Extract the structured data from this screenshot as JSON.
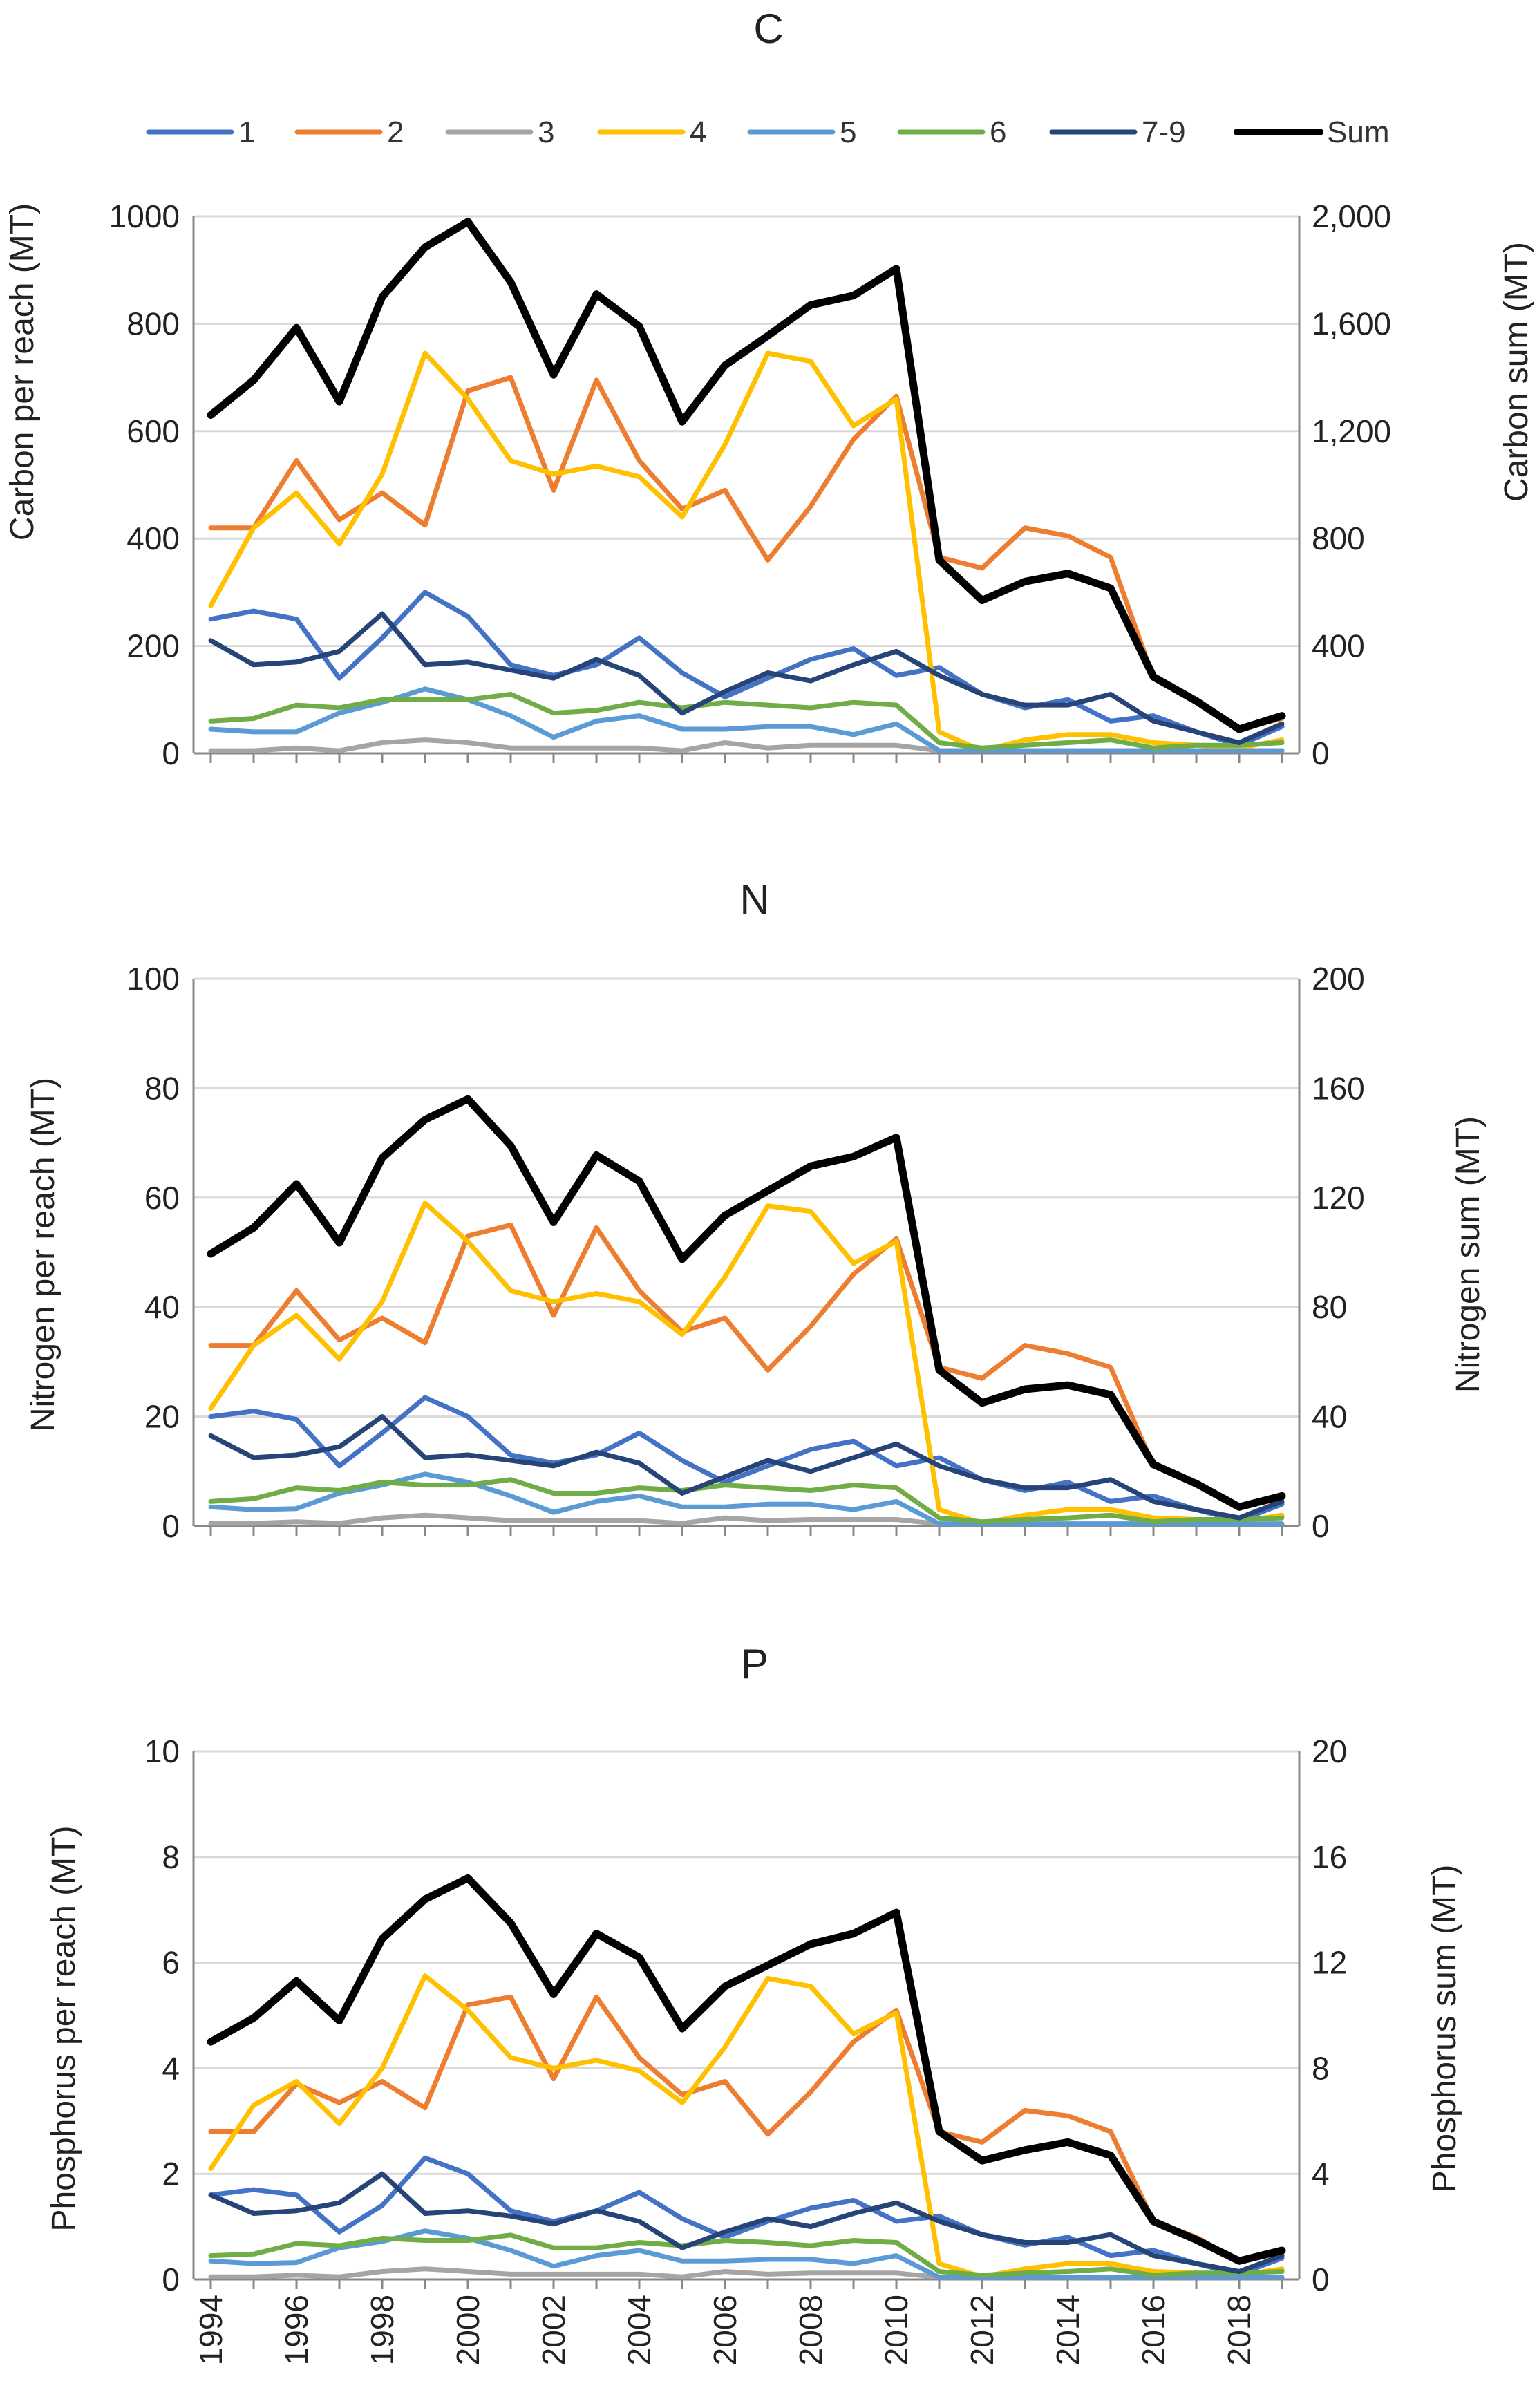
{
  "legend": [
    {
      "label": "1",
      "color": "#4472C4"
    },
    {
      "label": "2",
      "color": "#ED7D31"
    },
    {
      "label": "3",
      "color": "#A5A5A5"
    },
    {
      "label": "4",
      "color": "#FFC000"
    },
    {
      "label": "5",
      "color": "#5B9BD5"
    },
    {
      "label": "6",
      "color": "#70AD47"
    },
    {
      "label": "7-9",
      "color": "#264478"
    },
    {
      "label": "Sum",
      "color": "#000000"
    }
  ],
  "x_ticks": [
    "1994",
    "1996",
    "1998",
    "2000",
    "2002",
    "2004",
    "2006",
    "2008",
    "2010",
    "2012",
    "2014",
    "2016",
    "2018"
  ],
  "chart_data": [
    {
      "type": "line",
      "title": "C",
      "x": [
        1994,
        1995,
        1996,
        1997,
        1998,
        1999,
        2000,
        2001,
        2002,
        2003,
        2004,
        2005,
        2006,
        2007,
        2008,
        2009,
        2010,
        2011,
        2012,
        2013,
        2014,
        2015,
        2016,
        2017,
        2018,
        2019
      ],
      "ylabel": "Carbon per reach (MT)",
      "y2label": "Carbon sum (MT)",
      "ylim": [
        0,
        1000
      ],
      "y2lim": [
        0,
        2000
      ],
      "yticks": [
        "0",
        "200",
        "400",
        "600",
        "800",
        "1000"
      ],
      "y2ticks": [
        "0",
        "400",
        "800",
        "1,200",
        "1,600",
        "2,000"
      ],
      "series": [
        {
          "name": "1",
          "axis": "left",
          "values": [
            250,
            265,
            250,
            140,
            215,
            300,
            255,
            165,
            145,
            165,
            215,
            150,
            105,
            140,
            175,
            195,
            145,
            160,
            110,
            85,
            100,
            60,
            70,
            40,
            15,
            50
          ]
        },
        {
          "name": "2",
          "axis": "left",
          "values": [
            420,
            420,
            545,
            435,
            485,
            425,
            675,
            700,
            490,
            695,
            545,
            455,
            490,
            360,
            460,
            585,
            665,
            365,
            345,
            420,
            405,
            365,
            140,
            100,
            45,
            65
          ]
        },
        {
          "name": "3",
          "axis": "left",
          "values": [
            5,
            5,
            10,
            5,
            20,
            25,
            20,
            10,
            10,
            10,
            10,
            5,
            20,
            10,
            15,
            15,
            15,
            5,
            5,
            5,
            5,
            5,
            5,
            5,
            5,
            5
          ]
        },
        {
          "name": "4",
          "axis": "left",
          "values": [
            275,
            420,
            485,
            390,
            520,
            745,
            660,
            545,
            520,
            535,
            515,
            440,
            575,
            745,
            730,
            610,
            660,
            40,
            5,
            25,
            35,
            35,
            20,
            15,
            10,
            25
          ]
        },
        {
          "name": "5",
          "axis": "left",
          "values": [
            45,
            40,
            40,
            75,
            95,
            120,
            100,
            70,
            30,
            60,
            70,
            45,
            45,
            50,
            50,
            35,
            55,
            5,
            5,
            5,
            5,
            5,
            5,
            5,
            5,
            5
          ]
        },
        {
          "name": "6",
          "axis": "left",
          "values": [
            60,
            65,
            90,
            85,
            100,
            100,
            100,
            110,
            75,
            80,
            95,
            85,
            95,
            90,
            85,
            95,
            90,
            20,
            10,
            15,
            20,
            25,
            10,
            15,
            15,
            20
          ]
        },
        {
          "name": "7-9",
          "axis": "left",
          "values": [
            210,
            165,
            170,
            190,
            260,
            165,
            170,
            155,
            140,
            175,
            145,
            75,
            115,
            150,
            135,
            165,
            190,
            145,
            110,
            90,
            90,
            110,
            60,
            40,
            20,
            55
          ]
        },
        {
          "name": "Sum",
          "axis": "right",
          "values": [
            1260,
            1390,
            1585,
            1310,
            1700,
            1885,
            1980,
            1755,
            1410,
            1710,
            1590,
            1235,
            1445,
            1555,
            1670,
            1705,
            1805,
            720,
            570,
            640,
            670,
            615,
            285,
            195,
            90,
            140
          ]
        }
      ]
    },
    {
      "type": "line",
      "title": "N",
      "x": [
        1994,
        1995,
        1996,
        1997,
        1998,
        1999,
        2000,
        2001,
        2002,
        2003,
        2004,
        2005,
        2006,
        2007,
        2008,
        2009,
        2010,
        2011,
        2012,
        2013,
        2014,
        2015,
        2016,
        2017,
        2018,
        2019
      ],
      "ylabel": "Nitrogen per reach (MT)",
      "y2label": "Nitrogen sum (MT)",
      "ylim": [
        0,
        100
      ],
      "y2lim": [
        0,
        200
      ],
      "yticks": [
        "0",
        "20",
        "40",
        "60",
        "80",
        "100"
      ],
      "y2ticks": [
        "0",
        "40",
        "80",
        "120",
        "160",
        "200"
      ],
      "series": [
        {
          "name": "1",
          "axis": "left",
          "values": [
            20,
            21,
            19.5,
            11,
            17,
            23.5,
            20,
            13,
            11.5,
            13,
            17,
            12,
            8,
            11,
            14,
            15.5,
            11,
            12.5,
            8.5,
            6.5,
            8,
            4.5,
            5.5,
            3,
            1,
            4
          ]
        },
        {
          "name": "2",
          "axis": "left",
          "values": [
            33,
            33,
            43,
            34,
            38,
            33.5,
            53,
            55,
            38.5,
            54.5,
            43,
            35.5,
            38,
            28.5,
            36.5,
            46,
            52.5,
            29,
            27,
            33,
            31.5,
            29,
            11,
            8,
            3.5,
            5
          ]
        },
        {
          "name": "3",
          "axis": "left",
          "values": [
            0.5,
            0.5,
            0.8,
            0.5,
            1.5,
            2,
            1.5,
            1,
            1,
            1,
            1,
            0.5,
            1.5,
            1,
            1.2,
            1.2,
            1.2,
            0.4,
            0.4,
            0.4,
            0.4,
            0.4,
            0.4,
            0.4,
            0.4,
            0.4
          ]
        },
        {
          "name": "4",
          "axis": "left",
          "values": [
            21.5,
            33,
            38.5,
            30.5,
            41,
            59,
            52,
            43,
            41,
            42.5,
            41,
            35,
            45.5,
            58.5,
            57.5,
            48,
            52,
            3,
            0.5,
            2,
            3,
            3,
            1.5,
            1.2,
            0.8,
            2
          ]
        },
        {
          "name": "5",
          "axis": "left",
          "values": [
            3.5,
            3,
            3.2,
            6,
            7.5,
            9.5,
            8,
            5.5,
            2.5,
            4.5,
            5.5,
            3.5,
            3.5,
            4,
            4,
            3,
            4.5,
            0.4,
            0.4,
            0.4,
            0.4,
            0.4,
            0.4,
            0.4,
            0.4,
            0.4
          ]
        },
        {
          "name": "6",
          "axis": "left",
          "values": [
            4.5,
            5,
            7,
            6.5,
            8,
            7.5,
            7.5,
            8.5,
            6,
            6,
            7,
            6.5,
            7.5,
            7,
            6.5,
            7.5,
            7,
            1.5,
            0.8,
            1.2,
            1.5,
            2,
            0.8,
            1.2,
            1.2,
            1.5
          ]
        },
        {
          "name": "7-9",
          "axis": "left",
          "values": [
            16.5,
            12.5,
            13,
            14.5,
            20,
            12.5,
            13,
            12,
            11,
            13.5,
            11.5,
            6,
            9,
            12,
            10,
            12.5,
            15,
            11,
            8.5,
            7,
            7,
            8.5,
            4.5,
            3,
            1.5,
            4.5
          ]
        },
        {
          "name": "Sum",
          "axis": "right",
          "values": [
            99.5,
            109,
            125,
            103.5,
            134.5,
            148.5,
            156,
            139,
            111,
            135.5,
            126,
            97.5,
            113.5,
            122.5,
            131.5,
            135,
            142,
            57,
            45,
            50,
            51.5,
            48,
            22.5,
            15.5,
            7,
            11
          ]
        }
      ]
    },
    {
      "type": "line",
      "title": "P",
      "x": [
        1994,
        1995,
        1996,
        1997,
        1998,
        1999,
        2000,
        2001,
        2002,
        2003,
        2004,
        2005,
        2006,
        2007,
        2008,
        2009,
        2010,
        2011,
        2012,
        2013,
        2014,
        2015,
        2016,
        2017,
        2018,
        2019
      ],
      "ylabel": "Phosphorus per reach (MT)",
      "y2label": "Phosphorus sum (MT)",
      "ylim": [
        0,
        10
      ],
      "y2lim": [
        0,
        20
      ],
      "yticks": [
        "0",
        "2",
        "4",
        "6",
        "8",
        "10"
      ],
      "y2ticks": [
        "0",
        "4",
        "8",
        "12",
        "16",
        "20"
      ],
      "series": [
        {
          "name": "1",
          "axis": "left",
          "values": [
            1.6,
            1.7,
            1.6,
            0.9,
            1.4,
            2.3,
            2.0,
            1.3,
            1.1,
            1.3,
            1.65,
            1.15,
            0.8,
            1.1,
            1.35,
            1.5,
            1.1,
            1.2,
            0.85,
            0.65,
            0.8,
            0.45,
            0.55,
            0.3,
            0.1,
            0.4
          ]
        },
        {
          "name": "2",
          "axis": "left",
          "values": [
            2.8,
            2.8,
            3.7,
            3.35,
            3.75,
            3.25,
            5.2,
            5.35,
            3.8,
            5.35,
            4.2,
            3.5,
            3.75,
            2.75,
            3.55,
            4.5,
            5.1,
            2.8,
            2.6,
            3.2,
            3.1,
            2.8,
            1.1,
            0.8,
            0.35,
            0.5
          ]
        },
        {
          "name": "3",
          "axis": "left",
          "values": [
            0.05,
            0.05,
            0.08,
            0.05,
            0.15,
            0.2,
            0.15,
            0.1,
            0.1,
            0.1,
            0.1,
            0.05,
            0.15,
            0.1,
            0.12,
            0.12,
            0.12,
            0.04,
            0.04,
            0.04,
            0.04,
            0.04,
            0.04,
            0.04,
            0.04,
            0.04
          ]
        },
        {
          "name": "4",
          "axis": "left",
          "values": [
            2.1,
            3.3,
            3.75,
            2.95,
            4.0,
            5.75,
            5.1,
            4.2,
            4.0,
            4.15,
            3.95,
            3.35,
            4.4,
            5.7,
            5.55,
            4.65,
            5.05,
            0.3,
            0.05,
            0.2,
            0.3,
            0.3,
            0.15,
            0.12,
            0.08,
            0.2
          ]
        },
        {
          "name": "5",
          "axis": "left",
          "values": [
            0.35,
            0.3,
            0.32,
            0.6,
            0.72,
            0.92,
            0.78,
            0.55,
            0.25,
            0.45,
            0.55,
            0.35,
            0.35,
            0.38,
            0.38,
            0.3,
            0.45,
            0.04,
            0.04,
            0.04,
            0.04,
            0.04,
            0.04,
            0.04,
            0.04,
            0.04
          ]
        },
        {
          "name": "6",
          "axis": "left",
          "values": [
            0.45,
            0.48,
            0.68,
            0.64,
            0.78,
            0.74,
            0.74,
            0.84,
            0.6,
            0.6,
            0.7,
            0.64,
            0.74,
            0.7,
            0.64,
            0.74,
            0.7,
            0.15,
            0.08,
            0.12,
            0.15,
            0.2,
            0.08,
            0.12,
            0.12,
            0.15
          ]
        },
        {
          "name": "7-9",
          "axis": "left",
          "values": [
            1.6,
            1.25,
            1.3,
            1.45,
            2.0,
            1.25,
            1.3,
            1.2,
            1.05,
            1.3,
            1.1,
            0.6,
            0.9,
            1.15,
            1.0,
            1.25,
            1.45,
            1.1,
            0.85,
            0.7,
            0.7,
            0.85,
            0.45,
            0.3,
            0.15,
            0.45
          ]
        },
        {
          "name": "Sum",
          "axis": "right",
          "values": [
            9.0,
            9.9,
            11.3,
            9.8,
            12.9,
            14.4,
            15.2,
            13.5,
            10.8,
            13.1,
            12.2,
            9.5,
            11.1,
            11.9,
            12.7,
            13.1,
            13.9,
            5.6,
            4.5,
            4.9,
            5.2,
            4.7,
            2.2,
            1.5,
            0.7,
            1.1
          ]
        }
      ]
    }
  ]
}
